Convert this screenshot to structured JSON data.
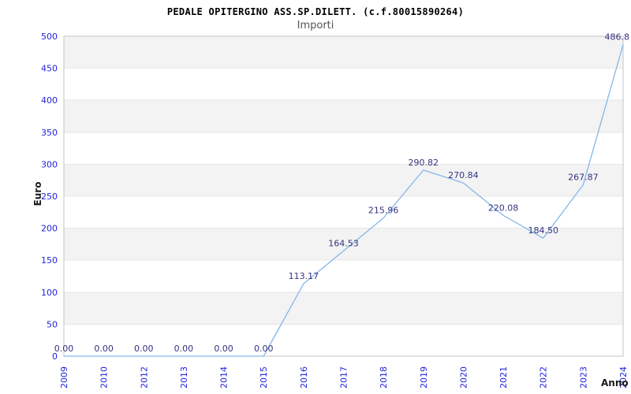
{
  "header": {
    "title": "PEDALE OPITERGINO ASS.SP.DILETT. (c.f.80015890264)",
    "subtitle": "Importi"
  },
  "chart_data": {
    "type": "line",
    "title": "PEDALE OPITERGINO ASS.SP.DILETT. (c.f.80015890264)",
    "subtitle": "Importi",
    "xlabel": "Anno",
    "ylabel": "Euro",
    "categories": [
      "2009",
      "2010",
      "2012",
      "2013",
      "2014",
      "2015",
      "2016",
      "2017",
      "2018",
      "2019",
      "2020",
      "2021",
      "2022",
      "2023",
      "2024"
    ],
    "values": [
      0,
      0,
      0,
      0,
      0,
      0,
      113.17,
      164.53,
      215.96,
      290.82,
      270.84,
      220.08,
      184.5,
      267.87,
      486.8
    ],
    "point_labels": [
      "0.00",
      "0.00",
      "0.00",
      "0.00",
      "0.00",
      "0.00",
      "113.17",
      "164.53",
      "215.96",
      "290.82",
      "270.84",
      "220.08",
      "184.50",
      "267.87",
      "486.8"
    ],
    "ylim": [
      0,
      500
    ],
    "ytick_step": 50,
    "y_ticks": [
      0,
      50,
      100,
      150,
      200,
      250,
      300,
      350,
      400,
      450,
      500
    ],
    "grid": "horizontal-bands",
    "legend_visible": false,
    "colors": {
      "line": "#85b7ea",
      "tick_label": "#2222dd",
      "point_label": "#333380",
      "band": "#f3f3f3",
      "gridline": "#e6e6e6",
      "border": "#c4c4c4",
      "title": "#000000",
      "subtitle": "#555555",
      "axis_title": "#1a1a1a"
    }
  }
}
